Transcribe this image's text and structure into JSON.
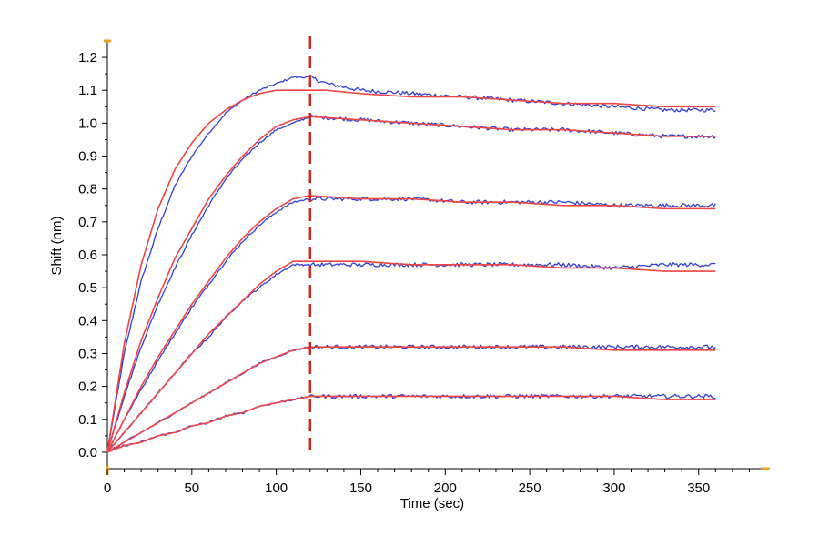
{
  "chart_data": {
    "type": "line",
    "xlabel": "Time (sec)",
    "ylabel": "Shift (nm)",
    "xlim": [
      0,
      390
    ],
    "ylim": [
      -0.05,
      1.25
    ],
    "x_ticks": [
      0,
      50,
      100,
      150,
      200,
      250,
      300,
      350
    ],
    "y_ticks": [
      0.0,
      0.1,
      0.2,
      0.3,
      0.4,
      0.5,
      0.6,
      0.7,
      0.8,
      0.9,
      1.0,
      1.1,
      1.2
    ],
    "x_tick_labels": [
      "0",
      "50",
      "100",
      "150",
      "200",
      "250",
      "300",
      "350"
    ],
    "y_tick_labels": [
      "0.0",
      "0.1",
      "0.2",
      "0.3",
      "0.4",
      "0.5",
      "0.6",
      "0.7",
      "0.8",
      "0.9",
      "1.0",
      "1.1",
      "1.2"
    ],
    "grid": false,
    "reference_line": {
      "x": 120,
      "style": "dashed",
      "color": "#d62020"
    },
    "colors": {
      "measured": "#2f3fd8",
      "fit": "#ee4444",
      "axis_marker": "#f0a020"
    },
    "series": [
      {
        "kind": "measured",
        "color": "#2f3fd8",
        "x": [
          0,
          10,
          20,
          30,
          40,
          50,
          60,
          70,
          80,
          90,
          100,
          110,
          120,
          130,
          150,
          180,
          210,
          240,
          270,
          300,
          330,
          360
        ],
        "y": [
          0.0,
          0.3,
          0.52,
          0.68,
          0.81,
          0.9,
          0.97,
          1.03,
          1.07,
          1.1,
          1.12,
          1.14,
          1.14,
          1.12,
          1.1,
          1.09,
          1.08,
          1.07,
          1.06,
          1.05,
          1.04,
          1.04
        ]
      },
      {
        "kind": "fit",
        "color": "#ee4444",
        "x": [
          0,
          10,
          20,
          30,
          40,
          50,
          60,
          70,
          80,
          90,
          100,
          110,
          120,
          130,
          150,
          180,
          210,
          240,
          270,
          300,
          330,
          360
        ],
        "y": [
          0.0,
          0.33,
          0.57,
          0.74,
          0.86,
          0.94,
          1.0,
          1.04,
          1.07,
          1.09,
          1.1,
          1.1,
          1.1,
          1.1,
          1.09,
          1.08,
          1.08,
          1.07,
          1.06,
          1.06,
          1.05,
          1.05
        ]
      },
      {
        "kind": "measured",
        "color": "#2f3fd8",
        "x": [
          0,
          10,
          20,
          30,
          40,
          50,
          60,
          70,
          80,
          90,
          100,
          110,
          120,
          150,
          180,
          210,
          240,
          270,
          300,
          330,
          360
        ],
        "y": [
          0.0,
          0.17,
          0.32,
          0.45,
          0.56,
          0.66,
          0.75,
          0.83,
          0.89,
          0.94,
          0.98,
          1.0,
          1.02,
          1.01,
          1.0,
          0.99,
          0.98,
          0.98,
          0.97,
          0.96,
          0.96
        ]
      },
      {
        "kind": "fit",
        "color": "#ee4444",
        "x": [
          0,
          10,
          20,
          30,
          40,
          50,
          60,
          70,
          80,
          90,
          100,
          110,
          120,
          150,
          180,
          210,
          240,
          270,
          300,
          330,
          360
        ],
        "y": [
          0.0,
          0.18,
          0.34,
          0.47,
          0.59,
          0.68,
          0.77,
          0.84,
          0.9,
          0.95,
          0.99,
          1.01,
          1.02,
          1.01,
          1.0,
          0.99,
          0.98,
          0.98,
          0.97,
          0.96,
          0.96
        ]
      },
      {
        "kind": "measured",
        "color": "#2f3fd8",
        "x": [
          0,
          10,
          20,
          30,
          40,
          50,
          60,
          70,
          80,
          90,
          100,
          110,
          120,
          150,
          180,
          210,
          240,
          270,
          300,
          330,
          360
        ],
        "y": [
          0.0,
          0.1,
          0.19,
          0.28,
          0.36,
          0.44,
          0.51,
          0.58,
          0.64,
          0.69,
          0.73,
          0.76,
          0.77,
          0.77,
          0.77,
          0.76,
          0.76,
          0.76,
          0.75,
          0.75,
          0.75
        ]
      },
      {
        "kind": "fit",
        "color": "#ee4444",
        "x": [
          0,
          10,
          20,
          30,
          40,
          50,
          60,
          70,
          80,
          90,
          100,
          110,
          120,
          150,
          180,
          210,
          240,
          270,
          300,
          330,
          360
        ],
        "y": [
          0.0,
          0.1,
          0.2,
          0.29,
          0.37,
          0.45,
          0.52,
          0.59,
          0.65,
          0.7,
          0.74,
          0.77,
          0.78,
          0.77,
          0.77,
          0.76,
          0.76,
          0.75,
          0.75,
          0.74,
          0.74
        ]
      },
      {
        "kind": "measured",
        "color": "#2f3fd8",
        "x": [
          0,
          10,
          20,
          30,
          40,
          50,
          60,
          70,
          80,
          90,
          100,
          110,
          120,
          150,
          180,
          210,
          240,
          270,
          300,
          330,
          360
        ],
        "y": [
          0.0,
          0.06,
          0.12,
          0.18,
          0.24,
          0.3,
          0.35,
          0.41,
          0.46,
          0.5,
          0.54,
          0.57,
          0.57,
          0.57,
          0.57,
          0.57,
          0.57,
          0.57,
          0.56,
          0.57,
          0.57
        ]
      },
      {
        "kind": "fit",
        "color": "#ee4444",
        "x": [
          0,
          10,
          20,
          30,
          40,
          50,
          60,
          70,
          80,
          90,
          100,
          110,
          120,
          150,
          180,
          210,
          240,
          270,
          300,
          330,
          360
        ],
        "y": [
          0.0,
          0.06,
          0.12,
          0.18,
          0.24,
          0.3,
          0.36,
          0.41,
          0.46,
          0.51,
          0.55,
          0.58,
          0.58,
          0.58,
          0.57,
          0.57,
          0.57,
          0.56,
          0.56,
          0.55,
          0.55
        ]
      },
      {
        "kind": "measured",
        "color": "#2f3fd8",
        "x": [
          0,
          10,
          20,
          30,
          40,
          50,
          60,
          70,
          80,
          90,
          100,
          110,
          120,
          150,
          180,
          210,
          240,
          270,
          300,
          330,
          360
        ],
        "y": [
          0.0,
          0.03,
          0.06,
          0.09,
          0.12,
          0.15,
          0.18,
          0.21,
          0.24,
          0.27,
          0.29,
          0.31,
          0.32,
          0.32,
          0.32,
          0.32,
          0.32,
          0.32,
          0.32,
          0.32,
          0.32
        ]
      },
      {
        "kind": "fit",
        "color": "#ee4444",
        "x": [
          0,
          10,
          20,
          30,
          40,
          50,
          60,
          70,
          80,
          90,
          100,
          110,
          120,
          150,
          180,
          210,
          240,
          270,
          300,
          330,
          360
        ],
        "y": [
          0.0,
          0.03,
          0.06,
          0.09,
          0.12,
          0.15,
          0.18,
          0.21,
          0.24,
          0.27,
          0.29,
          0.31,
          0.32,
          0.32,
          0.32,
          0.32,
          0.32,
          0.32,
          0.31,
          0.31,
          0.31
        ]
      },
      {
        "kind": "measured",
        "color": "#2f3fd8",
        "x": [
          0,
          10,
          20,
          30,
          40,
          50,
          60,
          70,
          80,
          90,
          100,
          110,
          120,
          150,
          180,
          210,
          240,
          270,
          300,
          330,
          360
        ],
        "y": [
          0.0,
          0.02,
          0.03,
          0.05,
          0.06,
          0.08,
          0.09,
          0.11,
          0.12,
          0.14,
          0.15,
          0.16,
          0.17,
          0.17,
          0.17,
          0.17,
          0.17,
          0.17,
          0.17,
          0.17,
          0.17
        ]
      },
      {
        "kind": "fit",
        "color": "#ee4444",
        "x": [
          0,
          10,
          20,
          30,
          40,
          50,
          60,
          70,
          80,
          90,
          100,
          110,
          120,
          150,
          180,
          210,
          240,
          270,
          300,
          330,
          360
        ],
        "y": [
          0.0,
          0.02,
          0.03,
          0.05,
          0.06,
          0.08,
          0.09,
          0.11,
          0.12,
          0.14,
          0.15,
          0.16,
          0.17,
          0.17,
          0.17,
          0.17,
          0.17,
          0.17,
          0.17,
          0.16,
          0.16
        ]
      }
    ]
  }
}
